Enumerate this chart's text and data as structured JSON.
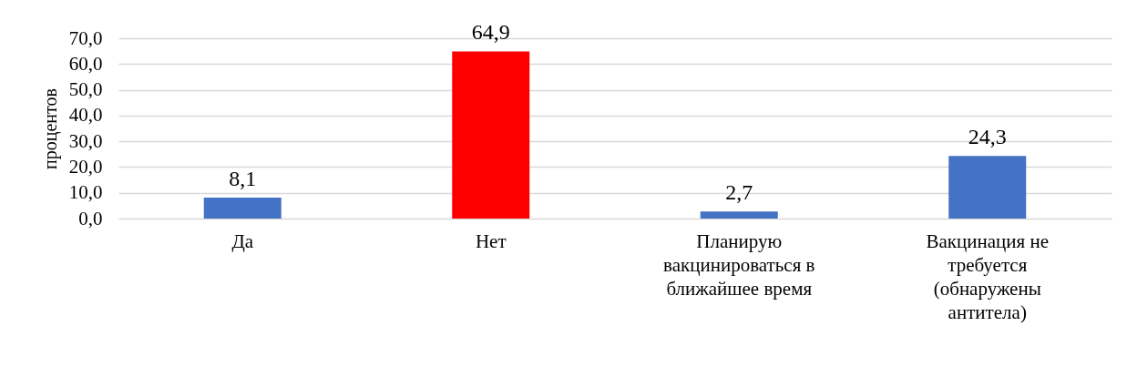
{
  "chart_data": {
    "type": "bar",
    "ylabel": "процентов",
    "categories": [
      "Да",
      "Нет",
      "Планирую вакцинироваться в ближайшее время",
      "Вакцинация не требуется (обнаружены антитела)"
    ],
    "values": [
      8.1,
      64.9,
      2.7,
      24.3
    ],
    "colors": [
      "#4472c4",
      "#ff0000",
      "#4472c4",
      "#4472c4"
    ],
    "value_labels": [
      "8,1",
      "64,9",
      "2,7",
      "24,3"
    ],
    "ylim": [
      0,
      70
    ],
    "yticks": [
      {
        "value": 0,
        "label": "0,0"
      },
      {
        "value": 10,
        "label": "10,0"
      },
      {
        "value": 20,
        "label": "20,0"
      },
      {
        "value": 30,
        "label": "30,0"
      },
      {
        "value": 40,
        "label": "40,0"
      },
      {
        "value": 50,
        "label": "50,0"
      },
      {
        "value": 60,
        "label": "60,0"
      },
      {
        "value": 70,
        "label": "70,0"
      }
    ],
    "grid": "y"
  }
}
